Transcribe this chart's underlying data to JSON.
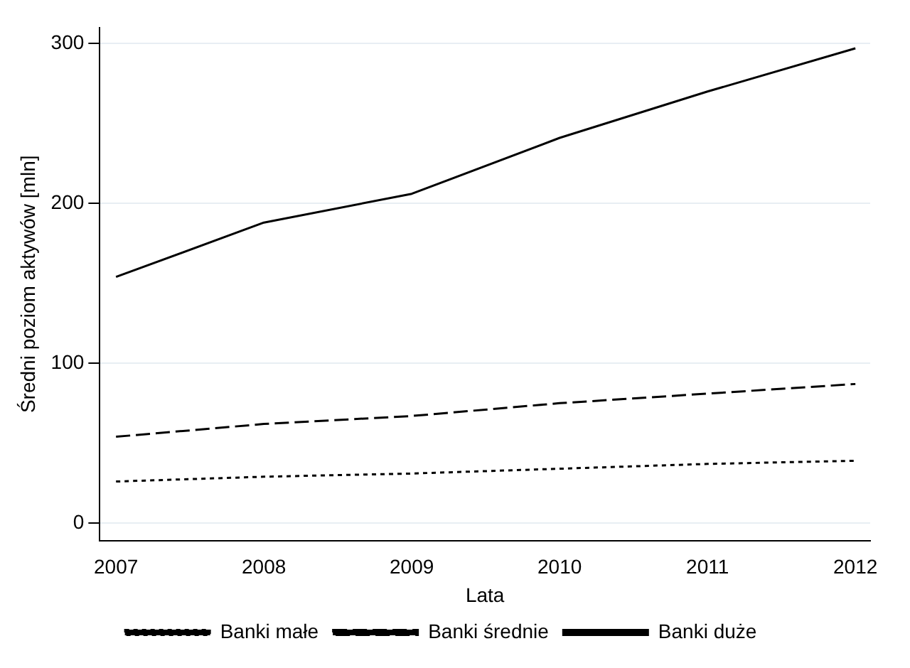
{
  "chart_data": {
    "type": "line",
    "xlabel": "Lata",
    "ylabel": "Średni poziom aktywów [mln]",
    "x": [
      2007,
      2008,
      2009,
      2010,
      2011,
      2012
    ],
    "series": [
      {
        "name": "Banki małe",
        "color": "#000000",
        "line_style": "dotted",
        "values": [
          26,
          29,
          31,
          34,
          37,
          39
        ]
      },
      {
        "name": "Banki średnie",
        "color": "#000000",
        "line_style": "dashed",
        "values": [
          54,
          62,
          67,
          75,
          81,
          87
        ]
      },
      {
        "name": "Banki duże",
        "color": "#000000",
        "line_style": "solid",
        "values": [
          154,
          188,
          206,
          241,
          270,
          297
        ]
      }
    ],
    "xlim": [
      2006.89,
      2012.1
    ],
    "xticks": [
      2007,
      2008,
      2009,
      2010,
      2011,
      2012
    ],
    "ylim": [
      -11,
      310
    ],
    "yticks": [
      0,
      100,
      200,
      300
    ],
    "grid": "y",
    "legend": "bottom",
    "marker": "none"
  }
}
